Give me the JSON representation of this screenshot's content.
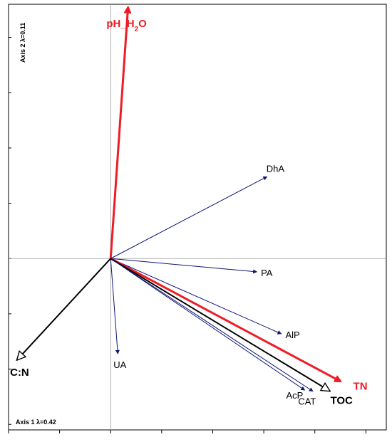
{
  "chart_data": {
    "type": "biplot",
    "axis1_label": "Axis 1 λ=0.42",
    "axis2_label": "Axis 2 λ=0.11",
    "xlim": [
      -1.0,
      2.7
    ],
    "ylim": [
      -1.55,
      2.3
    ],
    "ticks_x": [
      -1.0,
      -0.5,
      0.0,
      0.5,
      1.0,
      1.5,
      2.0,
      2.5
    ],
    "ticks_y": [
      -1.5,
      -1.0,
      -0.5,
      0.0,
      0.5,
      1.0,
      1.5,
      2.0
    ],
    "grid": false,
    "vectors": [
      {
        "name": "pH_H2O",
        "x": 0.17,
        "y": 2.27,
        "style": "red-filled",
        "label_pos": "top"
      },
      {
        "name": "DhA",
        "x": 1.53,
        "y": 0.74,
        "style": "blue",
        "label_pos": "top"
      },
      {
        "name": "PA",
        "x": 1.43,
        "y": -0.12,
        "style": "blue",
        "label_pos": "right"
      },
      {
        "name": "AlP",
        "x": 1.67,
        "y": -0.68,
        "style": "blue",
        "label_pos": "right"
      },
      {
        "name": "TN",
        "x": 2.25,
        "y": -1.11,
        "style": "red-filled",
        "label_pos": "right-below"
      },
      {
        "name": "TOC",
        "x": 2.15,
        "y": -1.2,
        "style": "black-open",
        "label_pos": "below"
      },
      {
        "name": "CAT",
        "x": 1.98,
        "y": -1.2,
        "style": "blue",
        "label_pos": "below"
      },
      {
        "name": "AcP",
        "x": 1.9,
        "y": -1.19,
        "style": "blue",
        "label_pos": "below-left"
      },
      {
        "name": "UA",
        "x": 0.07,
        "y": -0.86,
        "style": "blue",
        "label_pos": "below"
      },
      {
        "name": "C:N",
        "x": -0.92,
        "y": -0.92,
        "style": "black-open",
        "label_pos": "below"
      }
    ]
  },
  "colors": {
    "red": "#ee1c25",
    "blue": "#0d1577",
    "black": "#000000",
    "axis": "#9a9a9a",
    "frame": "#000000"
  }
}
